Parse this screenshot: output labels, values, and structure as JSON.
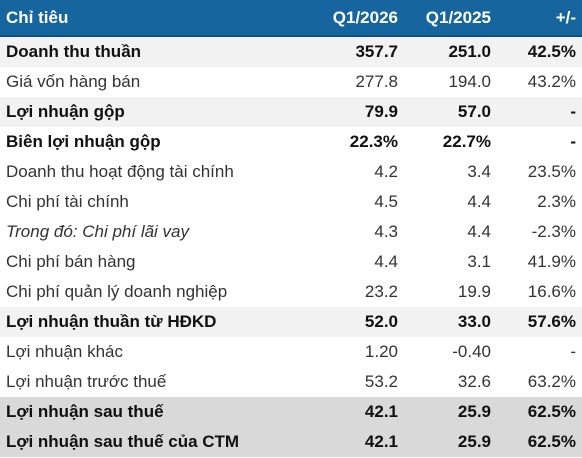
{
  "header": {
    "col_label": "Chỉ tiêu",
    "col_q1_2026": "Q1/2026",
    "col_q1_2025": "Q1/2025",
    "col_change": "+/-"
  },
  "rows": [
    {
      "label": "Doanh thu thuần",
      "q1_2026": "357.7",
      "q1_2025": "251.0",
      "change": "42.5%"
    },
    {
      "label": "Giá vốn hàng bán",
      "q1_2026": "277.8",
      "q1_2025": "194.0",
      "change": "43.2%"
    },
    {
      "label": "Lợi nhuận gộp",
      "q1_2026": "79.9",
      "q1_2025": "57.0",
      "change": "-"
    },
    {
      "label": "Biên lợi nhuận gộp",
      "q1_2026": "22.3%",
      "q1_2025": "22.7%",
      "change": "-"
    },
    {
      "label": "Doanh thu hoạt động tài chính",
      "q1_2026": "4.2",
      "q1_2025": "3.4",
      "change": "23.5%"
    },
    {
      "label": "Chi phí tài chính",
      "q1_2026": "4.5",
      "q1_2025": "4.4",
      "change": "2.3%"
    },
    {
      "label": "Trong đó: Chi phí lãi vay",
      "q1_2026": "4.3",
      "q1_2025": "4.4",
      "change": "-2.3%"
    },
    {
      "label": "Chi phí bán hàng",
      "q1_2026": "4.4",
      "q1_2025": "3.1",
      "change": "41.9%"
    },
    {
      "label": "Chi phí quản lý doanh nghiệp",
      "q1_2026": "23.2",
      "q1_2025": "19.9",
      "change": "16.6%"
    },
    {
      "label": "Lợi nhuận thuần từ HĐKD",
      "q1_2026": "52.0",
      "q1_2025": "33.0",
      "change": "57.6%"
    },
    {
      "label": "Lợi nhuận khác",
      "q1_2026": "1.20",
      "q1_2025": "-0.40",
      "change": "-"
    },
    {
      "label": "Lợi nhuận trước thuế",
      "q1_2026": "53.2",
      "q1_2025": "32.6",
      "change": "63.2%"
    },
    {
      "label": "Lợi nhuận sau thuế",
      "q1_2026": "42.1",
      "q1_2025": "25.9",
      "change": "62.5%"
    },
    {
      "label": "Lợi nhuận sau thuế của CTM",
      "q1_2026": "42.1",
      "q1_2025": "25.9",
      "change": "62.5%"
    }
  ],
  "colors": {
    "header_bg": "#17659f",
    "header_text": "#ffffff",
    "highlight_row_bg": "#d9d9d9",
    "alt_row_bg": "#f2f2f2"
  }
}
